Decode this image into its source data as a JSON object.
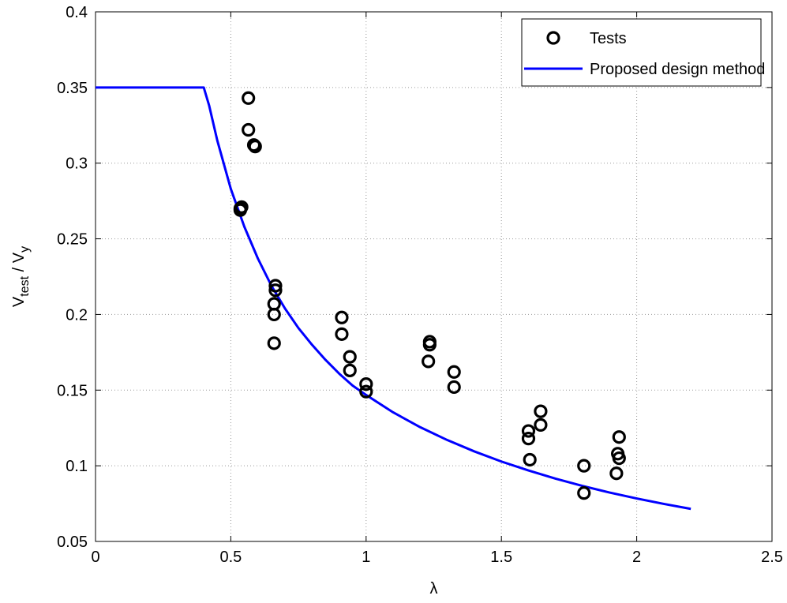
{
  "chart_data": {
    "type": "scatter",
    "xlabel": "λ",
    "ylabel": {
      "main_a": "V",
      "sub_a": "test",
      "sep": " / ",
      "main_b": "V",
      "sub_b": "y"
    },
    "xlim": [
      0,
      2.5
    ],
    "ylim": [
      0.05,
      0.4
    ],
    "xticks": [
      0,
      0.5,
      1,
      1.5,
      2,
      2.5
    ],
    "xtick_labels": [
      "0",
      "0.5",
      "1",
      "1.5",
      "2",
      "2.5"
    ],
    "yticks": [
      0.05,
      0.1,
      0.15,
      0.2,
      0.25,
      0.3,
      0.35,
      0.4
    ],
    "ytick_labels": [
      "0.05",
      "0.1",
      "0.15",
      "0.2",
      "0.25",
      "0.3",
      "0.35",
      "0.4"
    ],
    "grid": true,
    "legend_position": "top-right",
    "series": [
      {
        "name": "Tests",
        "style": "circle-markers",
        "color": "#000000",
        "points": [
          [
            0.535,
            0.27
          ],
          [
            0.54,
            0.271
          ],
          [
            0.535,
            0.269
          ],
          [
            0.565,
            0.343
          ],
          [
            0.565,
            0.322
          ],
          [
            0.585,
            0.312
          ],
          [
            0.59,
            0.311
          ],
          [
            0.665,
            0.219
          ],
          [
            0.665,
            0.216
          ],
          [
            0.66,
            0.207
          ],
          [
            0.66,
            0.2
          ],
          [
            0.66,
            0.181
          ],
          [
            0.91,
            0.198
          ],
          [
            0.91,
            0.187
          ],
          [
            0.94,
            0.172
          ],
          [
            0.94,
            0.163
          ],
          [
            1.0,
            0.154
          ],
          [
            1.0,
            0.149
          ],
          [
            1.235,
            0.182
          ],
          [
            1.235,
            0.18
          ],
          [
            1.23,
            0.169
          ],
          [
            1.325,
            0.162
          ],
          [
            1.325,
            0.152
          ],
          [
            1.6,
            0.123
          ],
          [
            1.6,
            0.118
          ],
          [
            1.605,
            0.104
          ],
          [
            1.645,
            0.136
          ],
          [
            1.645,
            0.127
          ],
          [
            1.805,
            0.1
          ],
          [
            1.805,
            0.082
          ],
          [
            1.935,
            0.119
          ],
          [
            1.93,
            0.108
          ],
          [
            1.935,
            0.105
          ],
          [
            1.925,
            0.095
          ]
        ]
      },
      {
        "name": "Proposed design method",
        "style": "line",
        "color": "#0000ff",
        "x": [
          0,
          0.3,
          0.4,
          0.42,
          0.45,
          0.5,
          0.55,
          0.6,
          0.65,
          0.7,
          0.75,
          0.8,
          0.85,
          0.9,
          0.95,
          1.0,
          1.1,
          1.2,
          1.3,
          1.4,
          1.5,
          1.6,
          1.7,
          1.8,
          1.9,
          2.0,
          2.1,
          2.2
        ],
        "y": [
          0.35,
          0.35,
          0.35,
          0.338,
          0.315,
          0.283,
          0.258,
          0.237,
          0.219,
          0.204,
          0.191,
          0.18,
          0.17,
          0.161,
          0.153,
          0.1468,
          0.1353,
          0.1255,
          0.117,
          0.1095,
          0.1028,
          0.0969,
          0.0915,
          0.0867,
          0.0823,
          0.0784,
          0.0748,
          0.0715
        ]
      }
    ]
  }
}
